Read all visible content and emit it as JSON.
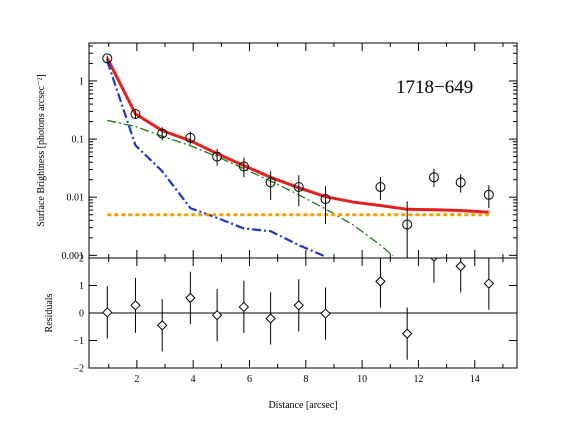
{
  "chart_data": [
    {
      "type": "scatter",
      "panel": "top",
      "annotation": "1718−649",
      "ylabel": "Surface Brightness [photons arcsec⁻²]",
      "yscale": "log",
      "xlim": [
        0.3,
        15.5
      ],
      "ylim": [
        0.0009,
        4.5
      ],
      "yticks": [
        {
          "value": 1,
          "label": "1"
        },
        {
          "value": 0.1,
          "label": "0.1"
        },
        {
          "value": 0.01,
          "label": "0.01"
        },
        {
          "value": 0.001,
          "label": "0.001"
        }
      ],
      "grid": false,
      "points": [
        {
          "x": 0.95,
          "y": 2.45,
          "lo": 2.2,
          "hi": 2.7
        },
        {
          "x": 1.95,
          "y": 0.27,
          "lo": 0.23,
          "hi": 0.31
        },
        {
          "x": 2.9,
          "y": 0.125,
          "lo": 0.095,
          "hi": 0.16
        },
        {
          "x": 3.9,
          "y": 0.105,
          "lo": 0.08,
          "hi": 0.135
        },
        {
          "x": 4.85,
          "y": 0.05,
          "lo": 0.035,
          "hi": 0.068
        },
        {
          "x": 5.8,
          "y": 0.034,
          "lo": 0.022,
          "hi": 0.048
        },
        {
          "x": 6.75,
          "y": 0.018,
          "lo": 0.009,
          "hi": 0.028
        },
        {
          "x": 7.75,
          "y": 0.015,
          "lo": 0.007,
          "hi": 0.024
        },
        {
          "x": 8.7,
          "y": 0.0093,
          "lo": 0.0035,
          "hi": 0.0155
        },
        {
          "x": 10.65,
          "y": 0.015,
          "lo": 0.009,
          "hi": 0.022
        },
        {
          "x": 11.6,
          "y": 0.0034,
          "lo": 0.0009,
          "hi": 0.0085
        },
        {
          "x": 12.55,
          "y": 0.022,
          "lo": 0.015,
          "hi": 0.031
        },
        {
          "x": 13.5,
          "y": 0.018,
          "lo": 0.012,
          "hi": 0.025
        },
        {
          "x": 14.5,
          "y": 0.011,
          "lo": 0.0065,
          "hi": 0.016
        }
      ],
      "lines": [
        {
          "style": "solid",
          "color": "#e51e1e",
          "points": [
            [
              0.95,
              2.45
            ],
            [
              1.95,
              0.27
            ],
            [
              2.9,
              0.14
            ],
            [
              3.9,
              0.094
            ],
            [
              4.85,
              0.056
            ],
            [
              5.8,
              0.035
            ],
            [
              6.75,
              0.022
            ],
            [
              7.75,
              0.0145
            ],
            [
              8.7,
              0.0102
            ],
            [
              9.7,
              0.0082
            ],
            [
              10.65,
              0.0072
            ],
            [
              11.6,
              0.0062
            ],
            [
              12.55,
              0.0061
            ],
            [
              13.5,
              0.0059
            ],
            [
              14.5,
              0.0055
            ]
          ]
        },
        {
          "style": "dash-dot",
          "color": "#1a36c8",
          "points": [
            [
              0.95,
              2.2
            ],
            [
              1.95,
              0.078
            ],
            [
              2.9,
              0.028
            ],
            [
              3.9,
              0.0065
            ],
            [
              4.85,
              0.0044
            ],
            [
              5.8,
              0.0029
            ],
            [
              6.75,
              0.0026
            ],
            [
              7.75,
              0.0015
            ],
            [
              8.7,
              0.00095
            ]
          ]
        },
        {
          "style": "dash-dot",
          "color": "#1d7a12",
          "points": [
            [
              0.95,
              0.21
            ],
            [
              1.95,
              0.165
            ],
            [
              2.9,
              0.112
            ],
            [
              3.9,
              0.077
            ],
            [
              4.85,
              0.05
            ],
            [
              5.8,
              0.031
            ],
            [
              6.75,
              0.019
            ],
            [
              7.75,
              0.011
            ],
            [
              8.7,
              0.0063
            ],
            [
              9.7,
              0.0033
            ],
            [
              10.65,
              0.0015
            ],
            [
              11.1,
              0.00098
            ]
          ]
        },
        {
          "style": "dotted",
          "color": "#f5a000",
          "points": [
            [
              0.95,
              0.005
            ],
            [
              14.5,
              0.005
            ]
          ]
        }
      ]
    },
    {
      "type": "scatter",
      "panel": "bottom",
      "xlabel": "Distance [arcsec]",
      "ylabel": "Residuals",
      "xlim": [
        0.3,
        15.5
      ],
      "ylim": [
        -2,
        2
      ],
      "xticks": [
        2,
        4,
        6,
        8,
        10,
        12,
        14
      ],
      "yticks": [
        -2,
        -1,
        0,
        1,
        2
      ],
      "zero_line": 0,
      "points": [
        {
          "x": 0.95,
          "y": 0.02,
          "err": 0.95
        },
        {
          "x": 1.95,
          "y": 0.28,
          "err": 1.0
        },
        {
          "x": 2.9,
          "y": -0.45,
          "err": 0.95
        },
        {
          "x": 3.9,
          "y": 0.55,
          "err": 0.95
        },
        {
          "x": 4.85,
          "y": -0.08,
          "err": 0.95
        },
        {
          "x": 5.8,
          "y": 0.22,
          "err": 0.95
        },
        {
          "x": 6.75,
          "y": -0.2,
          "err": 0.95
        },
        {
          "x": 7.75,
          "y": 0.28,
          "err": 0.95
        },
        {
          "x": 8.7,
          "y": -0.02,
          "err": 0.95
        },
        {
          "x": 10.65,
          "y": 1.15,
          "err": 0.95
        },
        {
          "x": 11.6,
          "y": -0.75,
          "err": 0.95
        },
        {
          "x": 12.55,
          "y": 2.05,
          "err": 0.95
        },
        {
          "x": 13.5,
          "y": 1.7,
          "err": 0.95
        },
        {
          "x": 14.5,
          "y": 1.07,
          "err": 0.95
        }
      ]
    }
  ]
}
